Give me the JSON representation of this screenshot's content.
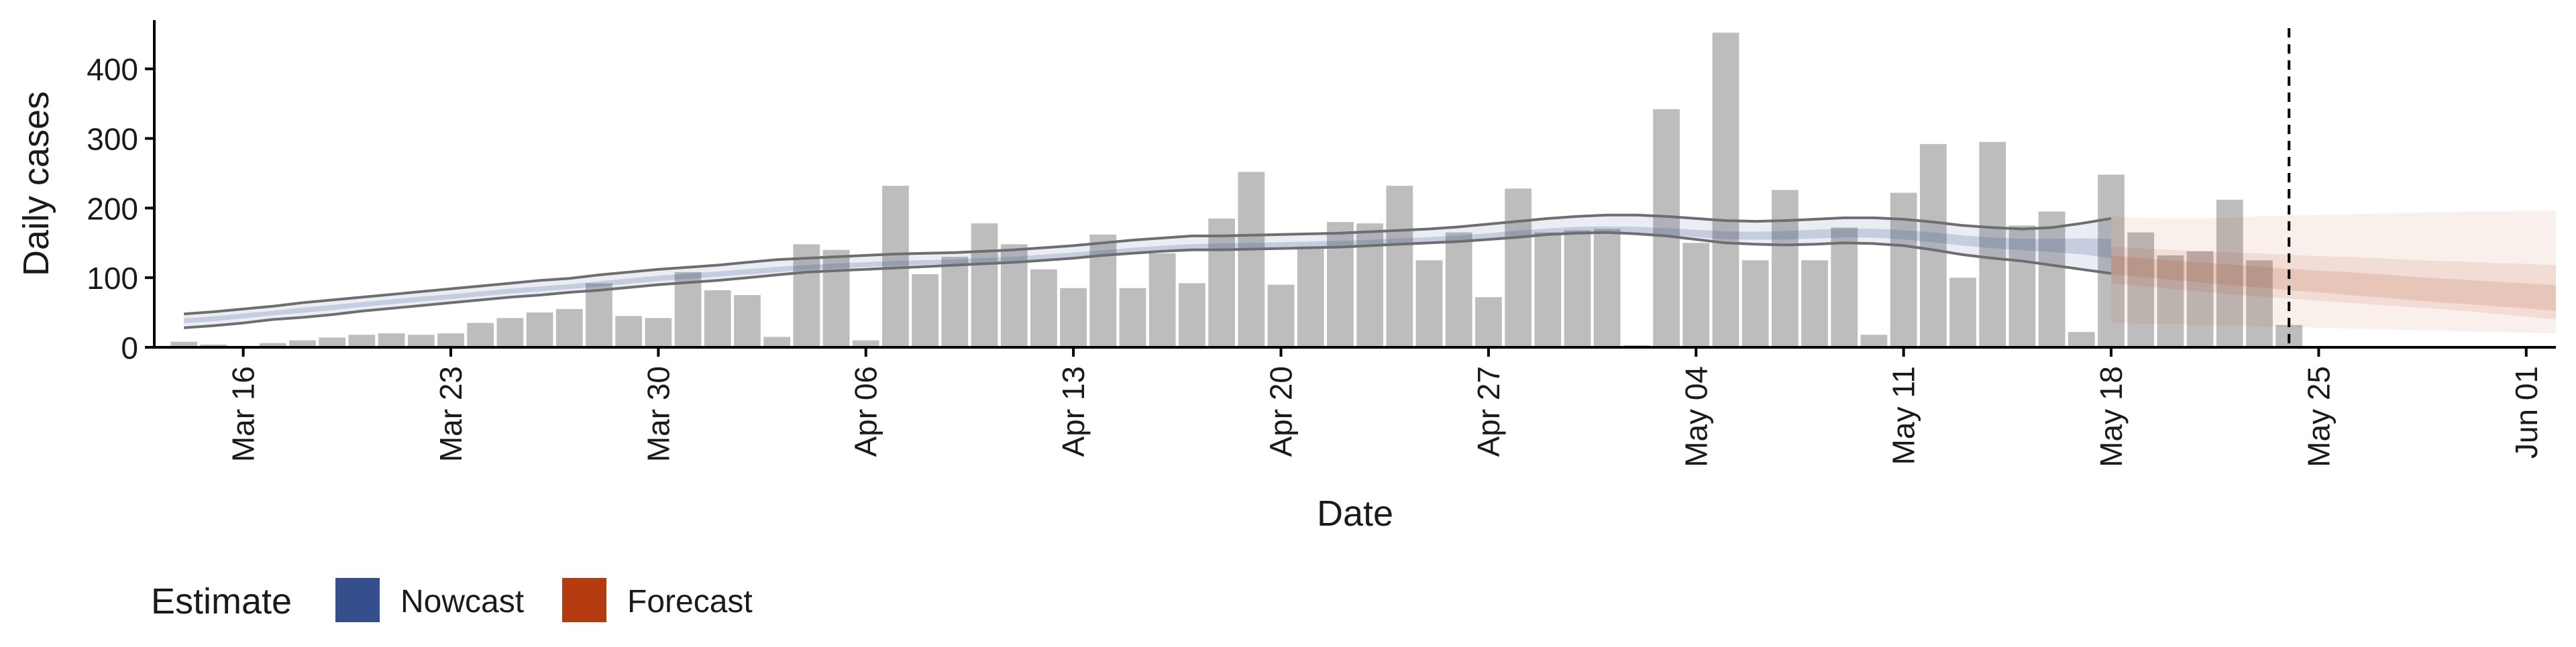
{
  "chart_data": {
    "type": "bar",
    "xlabel": "Date",
    "ylabel": "Daily cases",
    "x_start": "2020-03-13",
    "x_ticks": [
      "Mar 16",
      "Mar 23",
      "Mar 30",
      "Apr 06",
      "Apr 13",
      "Apr 20",
      "Apr 27",
      "May 04",
      "May 11",
      "May 18",
      "May 25",
      "Jun 01"
    ],
    "x_tick_dates": [
      "2020-03-16",
      "2020-03-23",
      "2020-03-30",
      "2020-04-06",
      "2020-04-13",
      "2020-04-20",
      "2020-04-27",
      "2020-05-04",
      "2020-05-11",
      "2020-05-18",
      "2020-05-25",
      "2020-06-01"
    ],
    "x_range": [
      "2020-03-13",
      "2020-06-02"
    ],
    "ylim": [
      0,
      470
    ],
    "y_ticks": [
      0,
      100,
      200,
      300,
      400
    ],
    "grid": false,
    "legend_position": "bottom-left",
    "legend": {
      "title": "Estimate",
      "items": [
        {
          "label": "Nowcast",
          "color": "#354f8c"
        },
        {
          "label": "Forecast",
          "color": "#b43a10"
        }
      ]
    },
    "vline_date": "2020-05-24",
    "bar_color": "#bdbdbd",
    "bars": {
      "start_date": "2020-03-14",
      "values": [
        8,
        4,
        2,
        6,
        10,
        14,
        18,
        20,
        18,
        20,
        35,
        42,
        50,
        55,
        92,
        45,
        42,
        108,
        82,
        75,
        15,
        148,
        140,
        10,
        232,
        105,
        130,
        178,
        148,
        112,
        85,
        162,
        85,
        135,
        92,
        185,
        252,
        90,
        145,
        180,
        178,
        232,
        125,
        165,
        72,
        228,
        165,
        168,
        170,
        3,
        342,
        150,
        452,
        125,
        226,
        125,
        172,
        18,
        222,
        292,
        100,
        295,
        175,
        195,
        22,
        248,
        165,
        132,
        138,
        212,
        125,
        32
      ]
    },
    "series": [
      {
        "name": "Nowcast",
        "color": "#354f8c",
        "start_date": "2020-03-14",
        "median": [
          38,
          41,
          45,
          49,
          53,
          57,
          61,
          65,
          69,
          72,
          76,
          80,
          83,
          86,
          90,
          94,
          98,
          101,
          104,
          107,
          110,
          113,
          115,
          117,
          119,
          120,
          121,
          123,
          125,
          128,
          131,
          134,
          137,
          140,
          142,
          143,
          144,
          145,
          146,
          147,
          148,
          150,
          152,
          154,
          157,
          160,
          163,
          165,
          165,
          164,
          162,
          160,
          158,
          158,
          159,
          161,
          162,
          162,
          160,
          157,
          153,
          150,
          148,
          147,
          145,
          140
        ],
        "lower_90": [
          28,
          31,
          35,
          40,
          43,
          47,
          52,
          56,
          60,
          64,
          68,
          72,
          75,
          79,
          82,
          86,
          90,
          93,
          96,
          100,
          104,
          108,
          110,
          112,
          114,
          116,
          118,
          120,
          122,
          125,
          128,
          132,
          135,
          138,
          140,
          140,
          141,
          142,
          143,
          144,
          146,
          148,
          150,
          152,
          155,
          158,
          162,
          164,
          165,
          163,
          160,
          155,
          150,
          148,
          147,
          148,
          150,
          149,
          146,
          140,
          133,
          128,
          124,
          118,
          112,
          106
        ],
        "upper_90": [
          48,
          51,
          55,
          59,
          64,
          68,
          72,
          76,
          80,
          84,
          88,
          92,
          96,
          99,
          104,
          108,
          112,
          115,
          118,
          122,
          126,
          128,
          130,
          132,
          134,
          135,
          136,
          138,
          140,
          143,
          146,
          150,
          154,
          157,
          160,
          160,
          161,
          162,
          163,
          164,
          166,
          168,
          170,
          173,
          177,
          181,
          185,
          188,
          190,
          190,
          188,
          185,
          182,
          181,
          182,
          184,
          186,
          186,
          184,
          180,
          175,
          172,
          170,
          172,
          178,
          185
        ]
      },
      {
        "name": "Forecast",
        "color": "#b43a10",
        "start_date": "2020-05-18",
        "median": [
          118,
          115,
          112,
          108,
          104,
          100,
          96,
          92,
          89,
          86,
          83,
          80,
          78,
          75,
          72,
          68
        ],
        "lower_90": [
          92,
          88,
          84,
          80,
          76,
          73,
          70,
          67,
          64,
          61,
          58,
          55,
          52,
          48,
          44,
          40
        ],
        "upper_90": [
          145,
          142,
          140,
          138,
          136,
          135,
          133,
          131,
          130,
          128,
          126,
          124,
          123,
          121,
          120,
          118
        ],
        "lower_50": [
          105,
          101,
          97,
          93,
          89,
          86,
          82,
          79,
          75,
          72,
          68,
          65,
          62,
          59,
          56,
          52
        ],
        "upper_50": [
          132,
          128,
          125,
          122,
          119,
          116,
          113,
          110,
          108,
          105,
          102,
          99,
          97,
          94,
          92,
          89
        ],
        "lower_outer": [
          35,
          34,
          33,
          32,
          31,
          30,
          29,
          28,
          27,
          26,
          25,
          24,
          23,
          22,
          21,
          20
        ],
        "upper_outer": [
          188,
          186,
          185,
          185,
          186,
          188,
          189,
          190,
          191,
          192,
          193,
          194,
          195,
          195,
          196,
          196
        ]
      }
    ]
  }
}
